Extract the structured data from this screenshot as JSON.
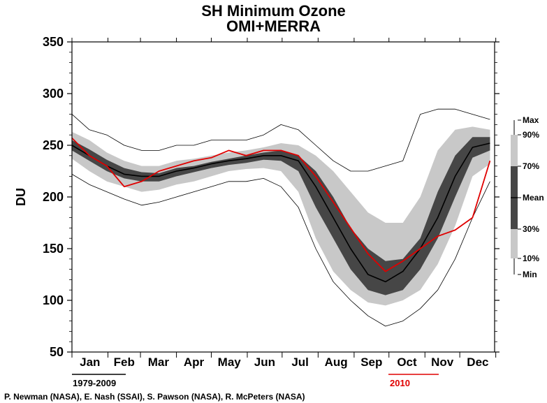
{
  "chart_data": {
    "type": "line",
    "title": "SH Minimum Ozone",
    "subtitle": "OMI+MERRA",
    "ylabel": "DU",
    "xlabel": "",
    "ylim": [
      50,
      350
    ],
    "yticks": [
      50,
      100,
      150,
      200,
      250,
      300,
      350
    ],
    "months": [
      "Jan",
      "Feb",
      "Mar",
      "Apr",
      "May",
      "Jun",
      "Jul",
      "Aug",
      "Sep",
      "Oct",
      "Nov",
      "Dec"
    ],
    "x_unit": "day of year",
    "grid": false,
    "climatology_period": "1979-2009",
    "highlight_year": "2010",
    "colors": {
      "year": "#e00000",
      "mean": "#000000",
      "band_10_90": "#c8c8c8",
      "band_30_70": "#464646",
      "minmax": "#000000",
      "axes": "#000000"
    },
    "percentile_legend": [
      "Max",
      "90%",
      "70%",
      "Mean",
      "30%",
      "10%",
      "Min"
    ],
    "day": [
      1,
      16,
      31,
      46,
      61,
      76,
      91,
      106,
      121,
      136,
      151,
      166,
      181,
      196,
      211,
      226,
      241,
      256,
      271,
      286,
      301,
      316,
      331,
      346,
      361
    ],
    "series": [
      {
        "name": "Max",
        "values": [
          280,
          265,
          260,
          250,
          245,
          245,
          250,
          250,
          255,
          255,
          255,
          260,
          270,
          265,
          250,
          235,
          225,
          225,
          230,
          235,
          280,
          285,
          285,
          280,
          275
        ]
      },
      {
        "name": "90%",
        "values": [
          263,
          255,
          243,
          235,
          230,
          230,
          235,
          237,
          240,
          243,
          245,
          248,
          252,
          250,
          240,
          225,
          205,
          185,
          175,
          175,
          200,
          245,
          265,
          268,
          265
        ]
      },
      {
        "name": "70%",
        "values": [
          255,
          246,
          236,
          228,
          224,
          223,
          228,
          230,
          234,
          237,
          240,
          243,
          245,
          240,
          225,
          200,
          170,
          150,
          138,
          140,
          160,
          205,
          240,
          258,
          258
        ]
      },
      {
        "name": "Mean",
        "values": [
          250,
          240,
          230,
          222,
          220,
          220,
          225,
          228,
          232,
          235,
          237,
          240,
          240,
          235,
          210,
          180,
          150,
          125,
          118,
          128,
          150,
          180,
          220,
          248,
          252
        ]
      },
      {
        "name": "30%",
        "values": [
          245,
          235,
          225,
          218,
          215,
          215,
          220,
          224,
          228,
          231,
          233,
          236,
          235,
          225,
          190,
          160,
          130,
          110,
          105,
          110,
          130,
          160,
          200,
          238,
          245
        ]
      },
      {
        "name": "10%",
        "values": [
          237,
          225,
          215,
          210,
          205,
          207,
          212,
          215,
          220,
          225,
          227,
          228,
          225,
          205,
          160,
          128,
          110,
          98,
          95,
          100,
          110,
          135,
          172,
          220,
          232
        ]
      },
      {
        "name": "Min",
        "values": [
          222,
          212,
          205,
          198,
          192,
          195,
          200,
          205,
          210,
          215,
          215,
          218,
          210,
          190,
          150,
          118,
          100,
          85,
          75,
          80,
          92,
          110,
          140,
          180,
          215
        ]
      },
      {
        "name": "2010",
        "values": [
          257,
          240,
          230,
          210,
          215,
          225,
          230,
          235,
          238,
          245,
          240,
          245,
          245,
          240,
          220,
          195,
          170,
          145,
          128,
          138,
          150,
          162,
          168,
          180,
          235
        ]
      }
    ]
  },
  "labels": {
    "title": "SH Minimum Ozone",
    "subtitle": "OMI+MERRA",
    "period_base": "1979-2009",
    "period_year": "2010",
    "credits": "P. Newman (NASA), E. Nash (SSAI), S. Pawson (NASA), R. McPeters (NASA)"
  }
}
